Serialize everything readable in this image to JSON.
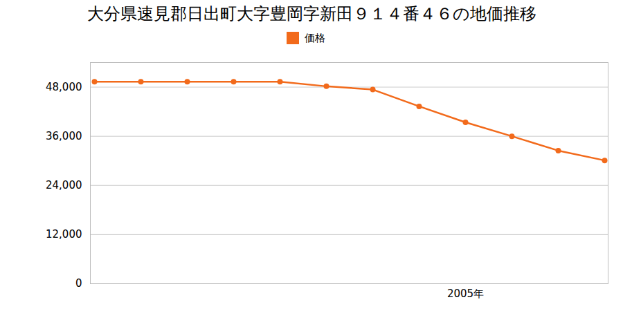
{
  "chart_data": {
    "type": "line",
    "title": "大分県速見郡日出町大字豊岡字新田９１４番４６の地価推移",
    "categories": [
      null,
      null,
      null,
      null,
      null,
      null,
      null,
      null,
      "2005年",
      null,
      null,
      null
    ],
    "series": [
      {
        "name": "価格",
        "color": "#f26a1b",
        "marker": "circle",
        "values": [
          49300,
          49300,
          49300,
          49300,
          49300,
          48200,
          47400,
          43300,
          39400,
          36000,
          32500,
          30100
        ]
      }
    ],
    "ylim": [
      0,
      54000
    ],
    "yticks": [
      0,
      {
        "value": 12000,
        "label": "12,000"
      },
      {
        "value": 24000,
        "label": "24,000"
      },
      {
        "value": 36000,
        "label": "36,000"
      },
      {
        "value": 48000,
        "label": "48,000"
      }
    ],
    "grid": true,
    "legend": "top"
  }
}
